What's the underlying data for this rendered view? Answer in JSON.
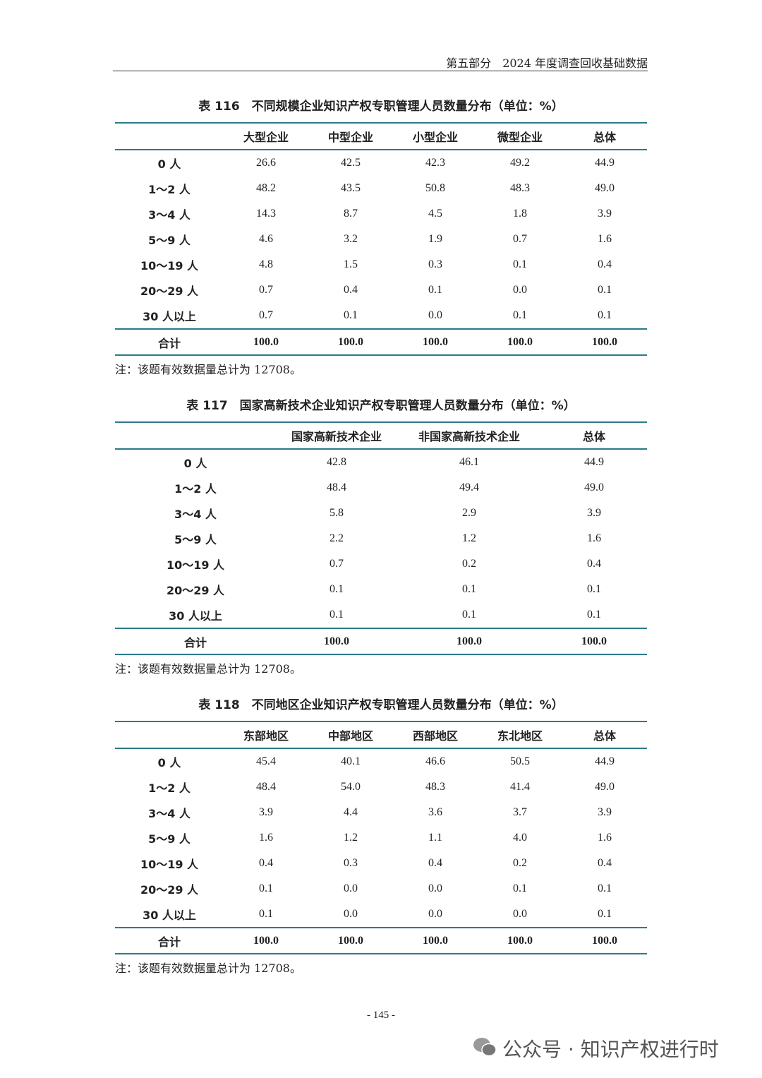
{
  "header": {
    "text": "第五部分　2024 年度调查回收基础数据"
  },
  "tables": [
    {
      "title": "表 116　不同规模企业知识产权专职管理人员数量分布（单位：%）",
      "columns": [
        "",
        "大型企业",
        "中型企业",
        "小型企业",
        "微型企业",
        "总体"
      ],
      "rows": [
        [
          "0 人",
          "26.6",
          "42.5",
          "42.3",
          "49.2",
          "44.9"
        ],
        [
          "1～2 人",
          "48.2",
          "43.5",
          "50.8",
          "48.3",
          "49.0"
        ],
        [
          "3～4 人",
          "14.3",
          "8.7",
          "4.5",
          "1.8",
          "3.9"
        ],
        [
          "5～9 人",
          "4.6",
          "3.2",
          "1.9",
          "0.7",
          "1.6"
        ],
        [
          "10～19 人",
          "4.8",
          "1.5",
          "0.3",
          "0.1",
          "0.4"
        ],
        [
          "20～29 人",
          "0.7",
          "0.4",
          "0.1",
          "0.0",
          "0.1"
        ],
        [
          "30 人以上",
          "0.7",
          "0.1",
          "0.0",
          "0.1",
          "0.1"
        ]
      ],
      "total": [
        "合计",
        "100.0",
        "100.0",
        "100.0",
        "100.0",
        "100.0"
      ],
      "note": "注：该题有效数据量总计为 12708。"
    },
    {
      "title": "表 117　国家高新技术企业知识产权专职管理人员数量分布（单位：%）",
      "columns": [
        "",
        "国家高新技术企业",
        "非国家高新技术企业",
        "总体"
      ],
      "rows": [
        [
          "0 人",
          "42.8",
          "46.1",
          "44.9"
        ],
        [
          "1～2 人",
          "48.4",
          "49.4",
          "49.0"
        ],
        [
          "3～4 人",
          "5.8",
          "2.9",
          "3.9"
        ],
        [
          "5～9 人",
          "2.2",
          "1.2",
          "1.6"
        ],
        [
          "10～19 人",
          "0.7",
          "0.2",
          "0.4"
        ],
        [
          "20～29 人",
          "0.1",
          "0.1",
          "0.1"
        ],
        [
          "30 人以上",
          "0.1",
          "0.1",
          "0.1"
        ]
      ],
      "total": [
        "合计",
        "100.0",
        "100.0",
        "100.0"
      ],
      "note": "注：该题有效数据量总计为 12708。"
    },
    {
      "title": "表 118　不同地区企业知识产权专职管理人员数量分布（单位：%）",
      "columns": [
        "",
        "东部地区",
        "中部地区",
        "西部地区",
        "东北地区",
        "总体"
      ],
      "rows": [
        [
          "0 人",
          "45.4",
          "40.1",
          "46.6",
          "50.5",
          "44.9"
        ],
        [
          "1～2 人",
          "48.4",
          "54.0",
          "48.3",
          "41.4",
          "49.0"
        ],
        [
          "3～4 人",
          "3.9",
          "4.4",
          "3.6",
          "3.7",
          "3.9"
        ],
        [
          "5～9 人",
          "1.6",
          "1.2",
          "1.1",
          "4.0",
          "1.6"
        ],
        [
          "10～19 人",
          "0.4",
          "0.3",
          "0.4",
          "0.2",
          "0.4"
        ],
        [
          "20～29 人",
          "0.1",
          "0.0",
          "0.0",
          "0.1",
          "0.1"
        ],
        [
          "30 人以上",
          "0.1",
          "0.0",
          "0.0",
          "0.0",
          "0.1"
        ]
      ],
      "total": [
        "合计",
        "100.0",
        "100.0",
        "100.0",
        "100.0",
        "100.0"
      ],
      "note": "注：该题有效数据量总计为 12708。"
    }
  ],
  "footer": {
    "page": "- 145 -",
    "watermark": "公众号 · 知识产权进行时"
  }
}
